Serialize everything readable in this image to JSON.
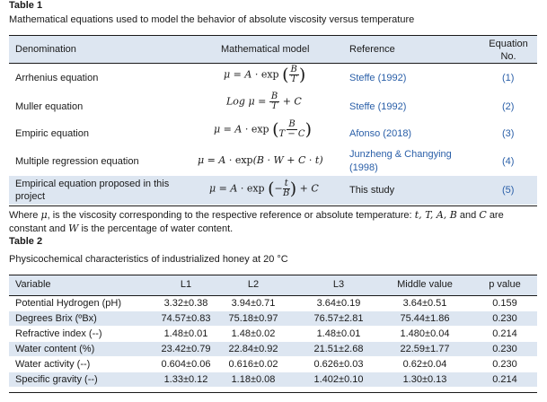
{
  "table1": {
    "label": "Table 1",
    "caption": "Mathematical equations used to model the behavior of absolute viscosity versus temperature",
    "headers": {
      "denomination": "Denomination",
      "model": "Mathematical model",
      "reference": "Reference",
      "equation_no": "Equation No."
    },
    "rows": [
      {
        "denomination": "Arrhenius equation",
        "reference": "Steffe (1992)",
        "number": "(1)"
      },
      {
        "denomination": "Muller equation",
        "reference": "Steffe (1992)",
        "number": "(2)"
      },
      {
        "denomination": "Empiric equation",
        "reference": "Afonso (2018)",
        "number": "(3)"
      },
      {
        "denomination": "Multiple regression equation",
        "reference_line1": "Junzheng & Changying",
        "reference_line2": "(1998)",
        "number": "(4)"
      },
      {
        "denomination_line1": "Empirical equation proposed in this",
        "denomination_line2": "project",
        "reference": "This study",
        "number": "(5)"
      }
    ],
    "note_line1_prefix": "Where",
    "note_line1_symbol": "μ",
    "note_line1_text": ", is the viscosity corresponding to the respective reference or absolute temperature:",
    "note_line1_vars": "t, T, A, B",
    "note_line1_and": "and",
    "note_line1_c": "C",
    "note_line1_end": "are",
    "note_line2_text": "constant and",
    "note_line2_w": "W",
    "note_line2_end": "is the percentage of water content."
  },
  "table2": {
    "label": "Table 2",
    "caption": "Physicochemical characteristics of industrialized honey at 20 °C",
    "headers": [
      "Variable",
      "L1",
      "L2",
      "L3",
      "Middle value",
      "p value"
    ],
    "rows": [
      [
        "Potential Hydrogen (pH)",
        "3.32±0.38",
        "3.94±0.71",
        "3.64±0.19",
        "3.64±0.51",
        "0.159"
      ],
      [
        "Degrees Brix (ºBx)",
        "74.57±0.83",
        "75.18±0.97",
        "76.57±2.81",
        "75.44±1.86",
        "0.230"
      ],
      [
        "Refractive index (--)",
        "1.48±0.01",
        "1.48±0.02",
        "1.48±0.01",
        "1.480±0.04",
        "0.214"
      ],
      [
        "Water content (%)",
        "23.42±0.79",
        "22.84±0.92",
        "21.51±2.68",
        "22.59±1.77",
        "0.230"
      ],
      [
        "Water activity (--)",
        "0.604±0.06",
        "0.616±0.02",
        "0.626±0.03",
        "0.62±0.04",
        "0.230"
      ],
      [
        "Specific gravity (--)",
        "1.33±0.12",
        "1.18±0.08",
        "1.402±0.10",
        "1.30±0.13",
        "0.214"
      ]
    ]
  }
}
